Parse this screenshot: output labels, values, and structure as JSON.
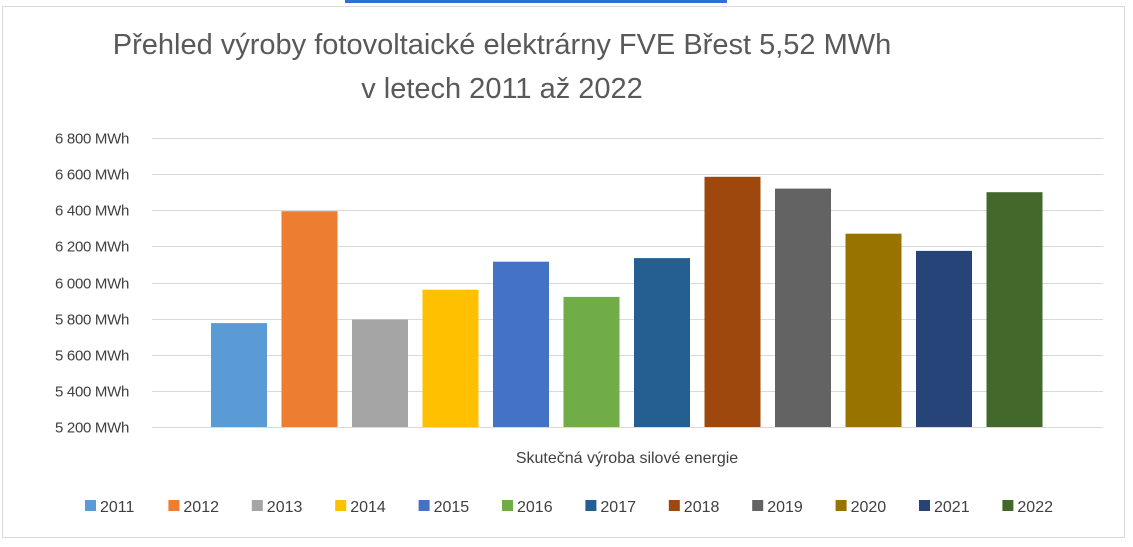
{
  "chart_data": {
    "type": "bar",
    "title": "Přehled výroby fotovoltaické elektrárny FVE Břest 5,52 MWh",
    "subtitle": "v letech 2011 až 2022",
    "xlabel": "Skutečná výroba silové energie",
    "ylabel": "",
    "ylim": [
      5200,
      6800
    ],
    "yticks": [
      6800,
      6600,
      6400,
      6200,
      6000,
      5800,
      5600,
      5400,
      5200
    ],
    "ytick_labels": [
      "6 800 MWh",
      "6 600 MWh",
      "6 400 MWh",
      "6 200 MWh",
      "6 000 MWh",
      "5 800 MWh",
      "5 600 MWh",
      "5 400 MWh",
      "5 200 MWh"
    ],
    "grid": true,
    "legend_position": "bottom",
    "series": [
      {
        "name": "2011",
        "value": 5775,
        "color": "#5b9bd5"
      },
      {
        "name": "2012",
        "value": 6395,
        "color": "#ed7d31"
      },
      {
        "name": "2013",
        "value": 5795,
        "color": "#a5a5a5"
      },
      {
        "name": "2014",
        "value": 5960,
        "color": "#ffc000"
      },
      {
        "name": "2015",
        "value": 6115,
        "color": "#4472c4"
      },
      {
        "name": "2016",
        "value": 5920,
        "color": "#70ad47"
      },
      {
        "name": "2017",
        "value": 6135,
        "color": "#255e91"
      },
      {
        "name": "2018",
        "value": 6585,
        "color": "#9e480e"
      },
      {
        "name": "2019",
        "value": 6520,
        "color": "#636363"
      },
      {
        "name": "2020",
        "value": 6270,
        "color": "#997300"
      },
      {
        "name": "2021",
        "value": 6175,
        "color": "#264478"
      },
      {
        "name": "2022",
        "value": 6500,
        "color": "#43682b"
      }
    ]
  }
}
